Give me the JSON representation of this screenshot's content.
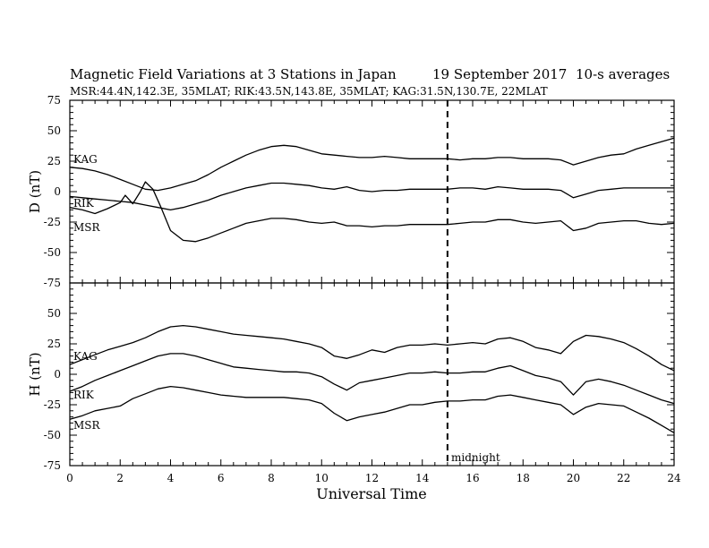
{
  "header": {
    "title": "Magnetic Field Variations at 3 Stations in Japan",
    "date": "19 September 2017",
    "averaging": "10-s averages",
    "stations": "MSR:44.4N,142.3E, 35MLAT;  RIK:43.5N,143.8E, 35MLAT;  KAG:31.5N,130.7E, 22MLAT"
  },
  "chart_data": [
    {
      "type": "line",
      "panel": "D",
      "ylabel": "D (nT)",
      "xlabel": "",
      "xlim": [
        0,
        24
      ],
      "ylim": [
        -75,
        75
      ],
      "yticks": [
        75,
        50,
        25,
        0,
        -25,
        -50,
        -75
      ],
      "xticks": [
        0,
        2,
        4,
        6,
        8,
        10,
        12,
        14,
        16,
        18,
        20,
        22,
        24
      ],
      "show_xtick_labels": false,
      "marker_line": {
        "x": 15,
        "style": "dashed"
      },
      "series": [
        {
          "name": "KAG",
          "x": [
            0,
            0.5,
            1,
            1.5,
            2,
            2.5,
            3,
            3.5,
            4,
            4.5,
            5,
            5.5,
            6,
            6.5,
            7,
            7.5,
            8,
            8.5,
            9,
            9.5,
            10,
            10.5,
            11,
            11.5,
            12,
            12.5,
            13,
            13.5,
            14,
            14.5,
            15,
            15.5,
            16,
            16.5,
            17,
            17.5,
            18,
            18.5,
            19,
            19.5,
            20,
            20.5,
            21,
            21.5,
            22,
            22.5,
            23,
            23.5,
            24
          ],
          "values": [
            20,
            19,
            17,
            14,
            10,
            6,
            2,
            1,
            3,
            6,
            9,
            14,
            20,
            25,
            30,
            34,
            37,
            38,
            37,
            34,
            31,
            30,
            29,
            28,
            28,
            29,
            28,
            27,
            27,
            27,
            27,
            26,
            27,
            27,
            28,
            28,
            27,
            27,
            27,
            26,
            22,
            25,
            28,
            30,
            31,
            35,
            38,
            41,
            44
          ]
        },
        {
          "name": "RIK",
          "x": [
            0,
            0.5,
            1,
            1.5,
            2,
            2.5,
            3,
            3.5,
            4,
            4.5,
            5,
            5.5,
            6,
            6.5,
            7,
            7.5,
            8,
            8.5,
            9,
            9.5,
            10,
            10.5,
            11,
            11.5,
            12,
            12.5,
            13,
            13.5,
            14,
            14.5,
            15,
            15.5,
            16,
            16.5,
            17,
            17.5,
            18,
            18.5,
            19,
            19.5,
            20,
            20.5,
            21,
            21.5,
            22,
            22.5,
            23,
            23.5,
            24
          ],
          "values": [
            -4,
            -5,
            -6,
            -7,
            -8,
            -9,
            -11,
            -13,
            -15,
            -13,
            -10,
            -7,
            -3,
            0,
            3,
            5,
            7,
            7,
            6,
            5,
            3,
            2,
            4,
            1,
            0,
            1,
            1,
            2,
            2,
            2,
            2,
            3,
            3,
            2,
            4,
            3,
            2,
            2,
            2,
            1,
            -5,
            -2,
            1,
            2,
            3,
            3,
            3,
            3,
            3
          ]
        },
        {
          "name": "MSR",
          "x": [
            0,
            0.5,
            1,
            1.5,
            2,
            2.2,
            2.5,
            2.8,
            3,
            3.3,
            3.6,
            4,
            4.5,
            5,
            5.5,
            6,
            6.5,
            7,
            7.5,
            8,
            8.5,
            9,
            9.5,
            10,
            10.5,
            11,
            11.5,
            12,
            12.5,
            13,
            13.5,
            14,
            14.5,
            15,
            15.5,
            16,
            16.5,
            17,
            17.5,
            18,
            18.5,
            19,
            19.5,
            20,
            20.5,
            21,
            21.5,
            22,
            22.5,
            23,
            23.5,
            24
          ],
          "values": [
            -13,
            -15,
            -18,
            -14,
            -9,
            -3,
            -10,
            0,
            8,
            2,
            -12,
            -32,
            -40,
            -41,
            -38,
            -34,
            -30,
            -26,
            -24,
            -22,
            -22,
            -23,
            -25,
            -26,
            -25,
            -28,
            -28,
            -29,
            -28,
            -28,
            -27,
            -27,
            -27,
            -27,
            -26,
            -25,
            -25,
            -23,
            -23,
            -25,
            -26,
            -25,
            -24,
            -32,
            -30,
            -26,
            -25,
            -24,
            -24,
            -26,
            -27,
            -26
          ]
        }
      ]
    },
    {
      "type": "line",
      "panel": "H",
      "ylabel": "H (nT)",
      "xlabel": "Universal Time",
      "xlim": [
        0,
        24
      ],
      "ylim": [
        -75,
        75
      ],
      "yticks": [
        50,
        25,
        0,
        -25,
        -50,
        -75
      ],
      "xticks": [
        0,
        2,
        4,
        6,
        8,
        10,
        12,
        14,
        16,
        18,
        20,
        22,
        24
      ],
      "show_xtick_labels": true,
      "marker_line": {
        "x": 15,
        "style": "dashed",
        "label": "midnight"
      },
      "series": [
        {
          "name": "KAG",
          "x": [
            0,
            0.5,
            1,
            1.5,
            2,
            2.5,
            3,
            3.5,
            4,
            4.5,
            5,
            5.5,
            6,
            6.5,
            7,
            7.5,
            8,
            8.5,
            9,
            9.5,
            10,
            10.5,
            11,
            11.5,
            12,
            12.5,
            13,
            13.5,
            14,
            14.5,
            15,
            15.5,
            16,
            16.5,
            17,
            17.5,
            18,
            18.5,
            19,
            19.5,
            20,
            20.5,
            21,
            21.5,
            22,
            22.5,
            23,
            23.5,
            24
          ],
          "values": [
            8,
            12,
            16,
            20,
            23,
            26,
            30,
            35,
            39,
            40,
            39,
            37,
            35,
            33,
            32,
            31,
            30,
            29,
            27,
            25,
            22,
            15,
            13,
            16,
            20,
            18,
            22,
            24,
            24,
            25,
            24,
            25,
            26,
            25,
            29,
            30,
            27,
            22,
            20,
            17,
            27,
            32,
            31,
            29,
            26,
            21,
            15,
            8,
            3
          ]
        },
        {
          "name": "RIK",
          "x": [
            0,
            0.5,
            1,
            1.5,
            2,
            2.5,
            3,
            3.5,
            4,
            4.5,
            5,
            5.5,
            6,
            6.5,
            7,
            7.5,
            8,
            8.5,
            9,
            9.5,
            10,
            10.5,
            11,
            11.5,
            12,
            12.5,
            13,
            13.5,
            14,
            14.5,
            15,
            15.5,
            16,
            16.5,
            17,
            17.5,
            18,
            18.5,
            19,
            19.5,
            20,
            20.5,
            21,
            21.5,
            22,
            22.5,
            23,
            23.5,
            24
          ],
          "values": [
            -14,
            -10,
            -5,
            -1,
            3,
            7,
            11,
            15,
            17,
            17,
            15,
            12,
            9,
            6,
            5,
            4,
            3,
            2,
            2,
            1,
            -2,
            -8,
            -13,
            -7,
            -5,
            -3,
            -1,
            1,
            1,
            2,
            1,
            1,
            2,
            2,
            5,
            7,
            3,
            -1,
            -3,
            -6,
            -17,
            -6,
            -4,
            -6,
            -9,
            -13,
            -17,
            -21,
            -24
          ]
        },
        {
          "name": "MSR",
          "x": [
            0,
            0.5,
            1,
            1.5,
            2,
            2.5,
            3,
            3.5,
            4,
            4.5,
            5,
            5.5,
            6,
            6.5,
            7,
            7.5,
            8,
            8.5,
            9,
            9.5,
            10,
            10.5,
            11,
            11.5,
            12,
            12.5,
            13,
            13.5,
            14,
            14.5,
            15,
            15.5,
            16,
            16.5,
            17,
            17.5,
            18,
            18.5,
            19,
            19.5,
            20,
            20.5,
            21,
            21.5,
            22,
            22.5,
            23,
            23.5,
            24
          ],
          "values": [
            -37,
            -34,
            -30,
            -28,
            -26,
            -20,
            -16,
            -12,
            -10,
            -11,
            -13,
            -15,
            -17,
            -18,
            -19,
            -19,
            -19,
            -19,
            -20,
            -21,
            -24,
            -32,
            -38,
            -35,
            -33,
            -31,
            -28,
            -25,
            -25,
            -23,
            -22,
            -22,
            -21,
            -21,
            -18,
            -17,
            -19,
            -21,
            -23,
            -25,
            -33,
            -27,
            -24,
            -25,
            -26,
            -31,
            -36,
            -42,
            -48
          ]
        }
      ]
    }
  ]
}
